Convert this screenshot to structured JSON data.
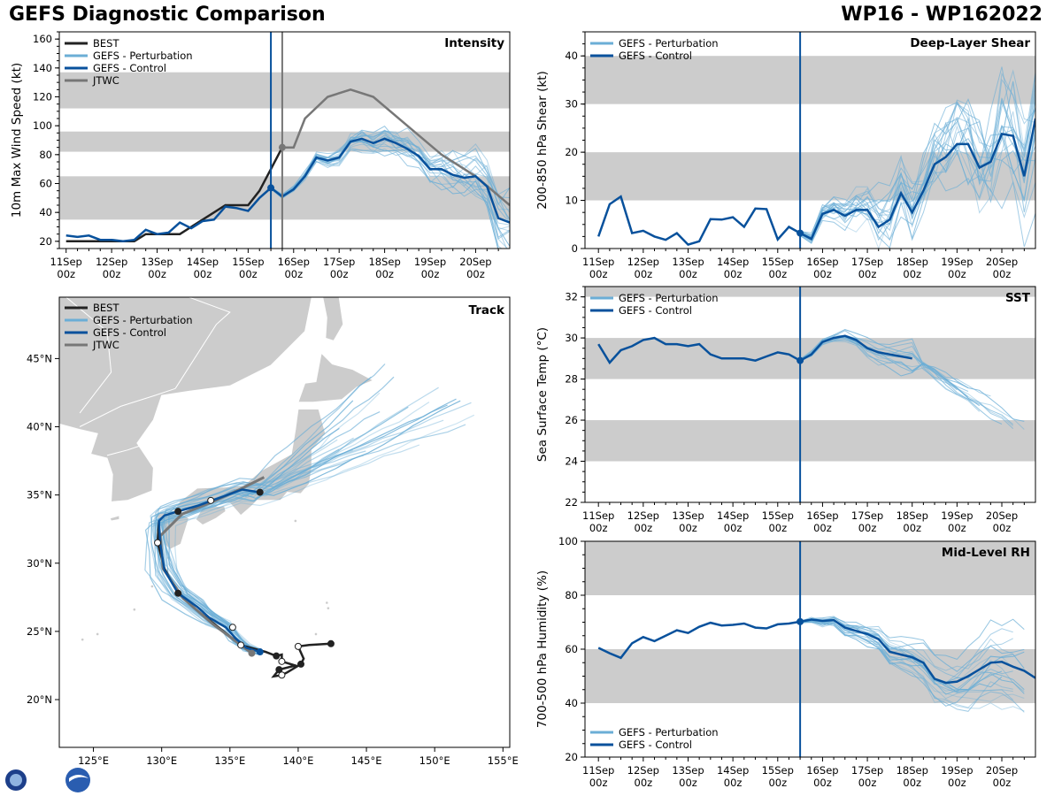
{
  "header": {
    "title": "GEFS Diagnostic Comparison",
    "storm": "WP16 - WP162022"
  },
  "colors": {
    "best": "#222222",
    "perturbation": "#6baed6",
    "control": "#08519c",
    "jtwc": "#777777",
    "band": "#cccccc",
    "land": "#cccccc"
  },
  "time_ticks": [
    {
      "top": "11Sep",
      "bottom": "00z"
    },
    {
      "top": "12Sep",
      "bottom": "00z"
    },
    {
      "top": "13Sep",
      "bottom": "00z"
    },
    {
      "top": "14Sep",
      "bottom": "00z"
    },
    {
      "top": "15Sep",
      "bottom": "00z"
    },
    {
      "top": "16Sep",
      "bottom": "00z"
    },
    {
      "top": "17Sep",
      "bottom": "00z"
    },
    {
      "top": "18Sep",
      "bottom": "00z"
    },
    {
      "top": "19Sep",
      "bottom": "00z"
    },
    {
      "top": "20Sep",
      "bottom": "00z"
    }
  ],
  "chart_data": [
    {
      "id": "intensity",
      "type": "line",
      "title": "Intensity",
      "ylabel": "10m Max Wind Speed (kt)",
      "xlim": [
        -0.15,
        9.75
      ],
      "ylim": [
        15,
        165
      ],
      "yticks": [
        20,
        40,
        60,
        80,
        100,
        120,
        140,
        160
      ],
      "bands": [
        [
          35,
          65
        ],
        [
          82,
          96
        ],
        [
          112,
          137
        ]
      ],
      "init_lines": [
        {
          "x": 4.5,
          "series": "control"
        },
        {
          "x": 4.75,
          "series": "jtwc"
        }
      ],
      "legend": [
        "BEST",
        "GEFS - Perturbation",
        "GEFS - Control",
        "JTWC"
      ],
      "best": {
        "x": [
          0,
          0.5,
          1,
          1.25,
          1.5,
          1.75,
          2,
          2.25,
          2.5,
          2.75,
          3,
          3.25,
          3.5,
          3.75,
          4,
          4.25,
          4.5,
          4.75
        ],
        "y": [
          20,
          20,
          20,
          20,
          20,
          25,
          25,
          25,
          25,
          30,
          35,
          40,
          45,
          45,
          45,
          55,
          70,
          85
        ]
      },
      "control": {
        "x": [
          0,
          0.25,
          0.5,
          0.75,
          1,
          1.25,
          1.5,
          1.75,
          2,
          2.25,
          2.5,
          2.75,
          3,
          3.25,
          3.5,
          3.75,
          4,
          4.25,
          4.5,
          4.75,
          5,
          5.25,
          5.5,
          5.75,
          6,
          6.25,
          6.5,
          6.75,
          7,
          7.25,
          7.5,
          7.75,
          8,
          8.25,
          8.5,
          8.75,
          9,
          9.25,
          9.5,
          9.75
        ],
        "y": [
          24,
          23,
          24,
          21,
          21,
          20,
          21,
          28,
          25,
          26,
          33,
          29,
          34,
          35,
          44,
          43,
          41,
          50,
          57,
          51,
          56,
          65,
          78,
          76,
          78,
          89,
          91,
          88,
          91,
          88,
          84,
          79,
          70,
          70,
          66,
          64,
          65,
          58,
          36,
          33
        ]
      },
      "jtwc": {
        "x": [
          4.75,
          5,
          5.25,
          5.75,
          6.25,
          6.75,
          7.5,
          8.25,
          9,
          9.75
        ],
        "y": [
          85,
          85,
          105,
          120,
          125,
          120,
          100,
          80,
          65,
          45
        ]
      },
      "perturbation_count": 20
    },
    {
      "id": "shear",
      "type": "line",
      "title": "Deep-Layer Shear",
      "ylabel": "200-850 hPa Shear (kt)",
      "xlim": [
        -0.3,
        9.75
      ],
      "ylim": [
        0,
        45
      ],
      "yticks": [
        0,
        10,
        20,
        30,
        40
      ],
      "bands": [
        [
          10,
          20
        ],
        [
          30,
          40
        ]
      ],
      "init_lines": [
        {
          "x": 4.5,
          "series": "control"
        }
      ],
      "legend": [
        "GEFS - Perturbation",
        "GEFS - Control"
      ],
      "control": {
        "x": [
          0,
          0.25,
          0.5,
          0.75,
          1,
          1.25,
          1.5,
          1.75,
          2,
          2.25,
          2.5,
          2.75,
          3,
          3.25,
          3.5,
          3.75,
          4,
          4.25,
          4.5,
          4.75,
          5,
          5.25,
          5.5,
          5.75,
          6,
          6.25,
          6.5,
          6.75,
          7,
          7.25,
          7.5,
          7.75,
          8,
          8.25,
          8.5,
          8.75,
          9,
          9.25,
          9.5,
          9.75
        ],
        "y": [
          2.5,
          9.2,
          10.8,
          3.2,
          3.7,
          2.5,
          1.8,
          3.2,
          0.8,
          1.5,
          6.1,
          6.0,
          6.5,
          4.5,
          8.3,
          8.2,
          1.9,
          4.5,
          3.2,
          2.0,
          7.2,
          8.0,
          6.8,
          8.0,
          8.0,
          4.5,
          6.0,
          11.5,
          7.5,
          12.0,
          17.5,
          19.0,
          21.7,
          21.7,
          16.8,
          18.0,
          23.8,
          23.4,
          15.0,
          27.0
        ]
      },
      "perturbation_count": 20
    },
    {
      "id": "sst",
      "type": "line",
      "title": "SST",
      "ylabel": "Sea Surface Temp (°C)",
      "xlim": [
        -0.3,
        9.75
      ],
      "ylim": [
        22,
        32.5
      ],
      "yticks": [
        22,
        24,
        26,
        28,
        30,
        32
      ],
      "bands": [
        [
          24,
          26
        ],
        [
          28,
          30
        ],
        [
          32,
          32.5
        ]
      ],
      "init_lines": [
        {
          "x": 4.5,
          "series": "control"
        }
      ],
      "legend": [
        "GEFS - Perturbation",
        "GEFS - Control"
      ],
      "control": {
        "x": [
          0,
          0.25,
          0.5,
          0.75,
          1,
          1.25,
          1.5,
          1.75,
          2,
          2.25,
          2.5,
          2.75,
          3,
          3.25,
          3.5,
          3.75,
          4,
          4.25,
          4.5,
          4.75,
          5,
          5.25,
          5.5,
          5.75,
          6,
          6.25,
          6.5,
          6.75,
          7
        ],
        "y": [
          29.7,
          28.8,
          29.4,
          29.6,
          29.9,
          30.0,
          29.7,
          29.7,
          29.6,
          29.7,
          29.2,
          29.0,
          29.0,
          29.0,
          28.9,
          29.1,
          29.3,
          29.2,
          28.9,
          29.2,
          29.8,
          30.0,
          30.1,
          29.9,
          29.5,
          29.3,
          29.2,
          29.1,
          29.0
        ]
      },
      "perturbation_count": 14
    },
    {
      "id": "rh",
      "type": "line",
      "title": "Mid-Level RH",
      "ylabel": "700-500 hPa Humidity (%)",
      "xlim": [
        -0.3,
        9.75
      ],
      "ylim": [
        20,
        100
      ],
      "yticks": [
        20,
        40,
        60,
        80,
        100
      ],
      "bands": [
        [
          40,
          60
        ],
        [
          80,
          100
        ]
      ],
      "init_lines": [
        {
          "x": 4.5,
          "series": "control"
        }
      ],
      "legend": [
        "GEFS - Perturbation",
        "GEFS - Control"
      ],
      "control": {
        "x": [
          0,
          0.25,
          0.5,
          0.75,
          1,
          1.25,
          1.5,
          1.75,
          2,
          2.25,
          2.5,
          2.75,
          3,
          3.25,
          3.5,
          3.75,
          4,
          4.25,
          4.5,
          4.75,
          5,
          5.25,
          5.5,
          5.75,
          6,
          6.25,
          6.5,
          6.75,
          7,
          7.25,
          7.5,
          7.75,
          8,
          8.25,
          8.5,
          8.75,
          9,
          9.25,
          9.5,
          9.75
        ],
        "y": [
          60.5,
          58.5,
          56.8,
          62.2,
          64.5,
          63,
          65,
          67,
          66,
          68.3,
          69.8,
          68.8,
          69,
          69.5,
          68,
          67.7,
          69.2,
          69.5,
          70.2,
          71,
          70.5,
          70.8,
          68,
          66.8,
          65.6,
          63.7,
          59,
          58,
          57,
          55,
          49,
          47.5,
          48,
          50,
          52.5,
          55,
          55.3,
          53.5,
          52,
          49.3
        ]
      },
      "perturbation_count": 20
    },
    {
      "id": "track",
      "type": "scatter",
      "title": "Track",
      "xlim": [
        122.5,
        155.5
      ],
      "ylim": [
        16.5,
        49.5
      ],
      "lon_ticks": [
        "125°E",
        "130°E",
        "135°E",
        "140°E",
        "145°E",
        "150°E",
        "155°E"
      ],
      "lon_values": [
        125,
        130,
        135,
        140,
        145,
        150,
        155
      ],
      "lat_ticks": [
        "20°N",
        "25°N",
        "30°N",
        "35°N",
        "40°N",
        "45°N"
      ],
      "lat_values": [
        20,
        25,
        30,
        35,
        40,
        45
      ],
      "legend": [
        "BEST",
        "GEFS - Perturbation",
        "GEFS - Control",
        "JTWC"
      ],
      "best": {
        "lon": [
          142.4,
          140.8,
          140,
          140.4,
          140.2,
          139.2,
          138.8,
          138.2,
          138.6,
          139.8,
          138.8,
          138.8,
          138.4,
          137.6,
          135.8,
          132.4,
          131.2,
          130.2,
          129.7,
          129.8
        ],
        "lat": [
          24.1,
          24.0,
          23.9,
          23.0,
          22.6,
          22.0,
          21.8,
          21.7,
          22.2,
          22.5,
          22.8,
          23.3,
          23.2,
          23.5,
          24.0,
          26.7,
          27.8,
          29.6,
          31.5,
          33.1
        ]
      },
      "control": {
        "lon": [
          137.2,
          136.2,
          135.4,
          134.7,
          133.5,
          132.6,
          131.2,
          130.2,
          129.9,
          129.8,
          130.2,
          131.2,
          132.6,
          133.7,
          134.8,
          135.9,
          137.2
        ],
        "lat": [
          23.5,
          23.8,
          24.5,
          25.3,
          26.0,
          26.8,
          27.8,
          29.5,
          31.4,
          33.1,
          33.5,
          33.8,
          34.2,
          34.6,
          35.0,
          35.4,
          35.2
        ]
      },
      "jtwc": {
        "lon": [
          136.6,
          133.8,
          131.6,
          130.1,
          129.9,
          131.5,
          133.5,
          135.7,
          137.5
        ],
        "lat": [
          23.4,
          25.5,
          27.4,
          29.6,
          32.0,
          33.6,
          34.4,
          35.4,
          36.3
        ]
      },
      "perturbation_count": 25
    }
  ]
}
